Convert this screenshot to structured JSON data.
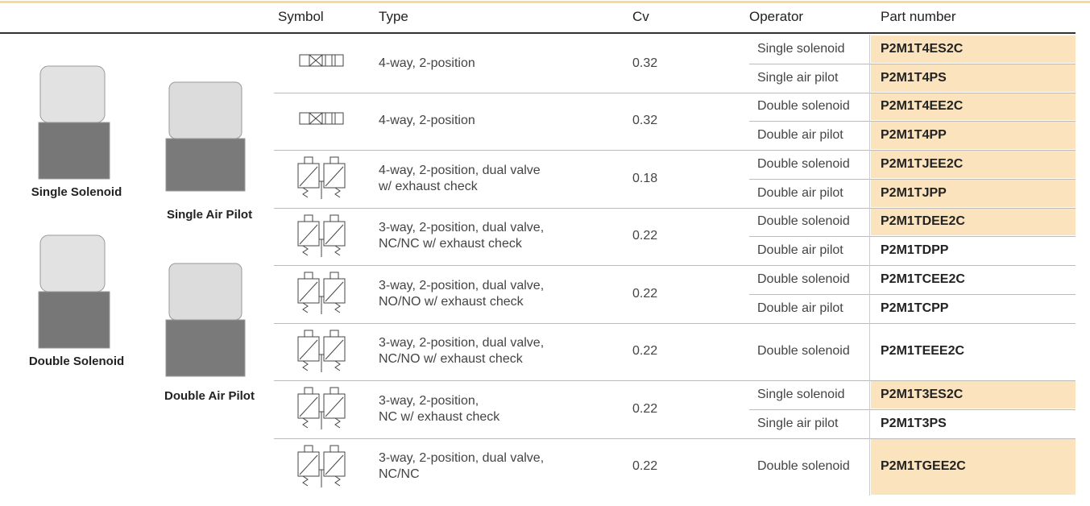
{
  "header": {
    "columns": [
      "Symbol",
      "Type",
      "Cv",
      "Operator",
      "Part number"
    ]
  },
  "products": [
    {
      "label": "Single Solenoid"
    },
    {
      "label": "Single Air Pilot"
    },
    {
      "label": "Double Solenoid"
    },
    {
      "label": "Double Air Pilot"
    }
  ],
  "table": {
    "rows": [
      {
        "type": "4-way, 2-position",
        "cv": 0.32,
        "operators": [
          {
            "operator": "Single solenoid",
            "part_number": "P2M1T4ES2C",
            "highlighted": true
          },
          {
            "operator": "Single air pilot",
            "part_number": "P2M1T4PS",
            "highlighted": true
          }
        ]
      },
      {
        "type": "4-way, 2-position",
        "cv": 0.32,
        "operators": [
          {
            "operator": "Double solenoid",
            "part_number": "P2M1T4EE2C",
            "highlighted": true
          },
          {
            "operator": "Double air pilot",
            "part_number": "P2M1T4PP",
            "highlighted": true
          }
        ]
      },
      {
        "type": "4-way, 2-position, dual valve\nw/ exhaust check",
        "cv": 0.18,
        "operators": [
          {
            "operator": "Double solenoid",
            "part_number": "P2M1TJEE2C",
            "highlighted": true
          },
          {
            "operator": "Double air pilot",
            "part_number": "P2M1TJPP",
            "highlighted": true
          }
        ]
      },
      {
        "type": "3-way, 2-position, dual valve,\nNC/NC w/ exhaust check",
        "cv": 0.22,
        "operators": [
          {
            "operator": "Double solenoid",
            "part_number": "P2M1TDEE2C",
            "highlighted": true
          },
          {
            "operator": "Double air pilot",
            "part_number": "P2M1TDPP",
            "highlighted": false
          }
        ]
      },
      {
        "type": "3-way, 2-position, dual valve,\nNO/NO w/ exhaust check",
        "cv": 0.22,
        "operators": [
          {
            "operator": "Double solenoid",
            "part_number": "P2M1TCEE2C",
            "highlighted": false
          },
          {
            "operator": "Double air pilot",
            "part_number": "P2M1TCPP",
            "highlighted": false
          }
        ]
      },
      {
        "type": "3-way, 2-position, dual valve,\nNC/NO w/ exhaust check",
        "cv": 0.22,
        "operators": [
          {
            "operator": "Double solenoid",
            "part_number": "P2M1TEEE2C",
            "highlighted": false
          }
        ]
      },
      {
        "type": "3-way, 2-position,\nNC w/ exhaust check",
        "cv": 0.22,
        "operators": [
          {
            "operator": "Single solenoid",
            "part_number": "P2M1T3ES2C",
            "highlighted": true
          },
          {
            "operator": "Single air pilot",
            "part_number": "P2M1T3PS",
            "highlighted": false
          }
        ]
      },
      {
        "type": "3-way, 2-position, dual valve,\nNC/NC",
        "cv": 0.22,
        "operators": [
          {
            "operator": "Double solenoid",
            "part_number": "P2M1TGEE2C",
            "highlighted": true
          }
        ]
      }
    ]
  }
}
